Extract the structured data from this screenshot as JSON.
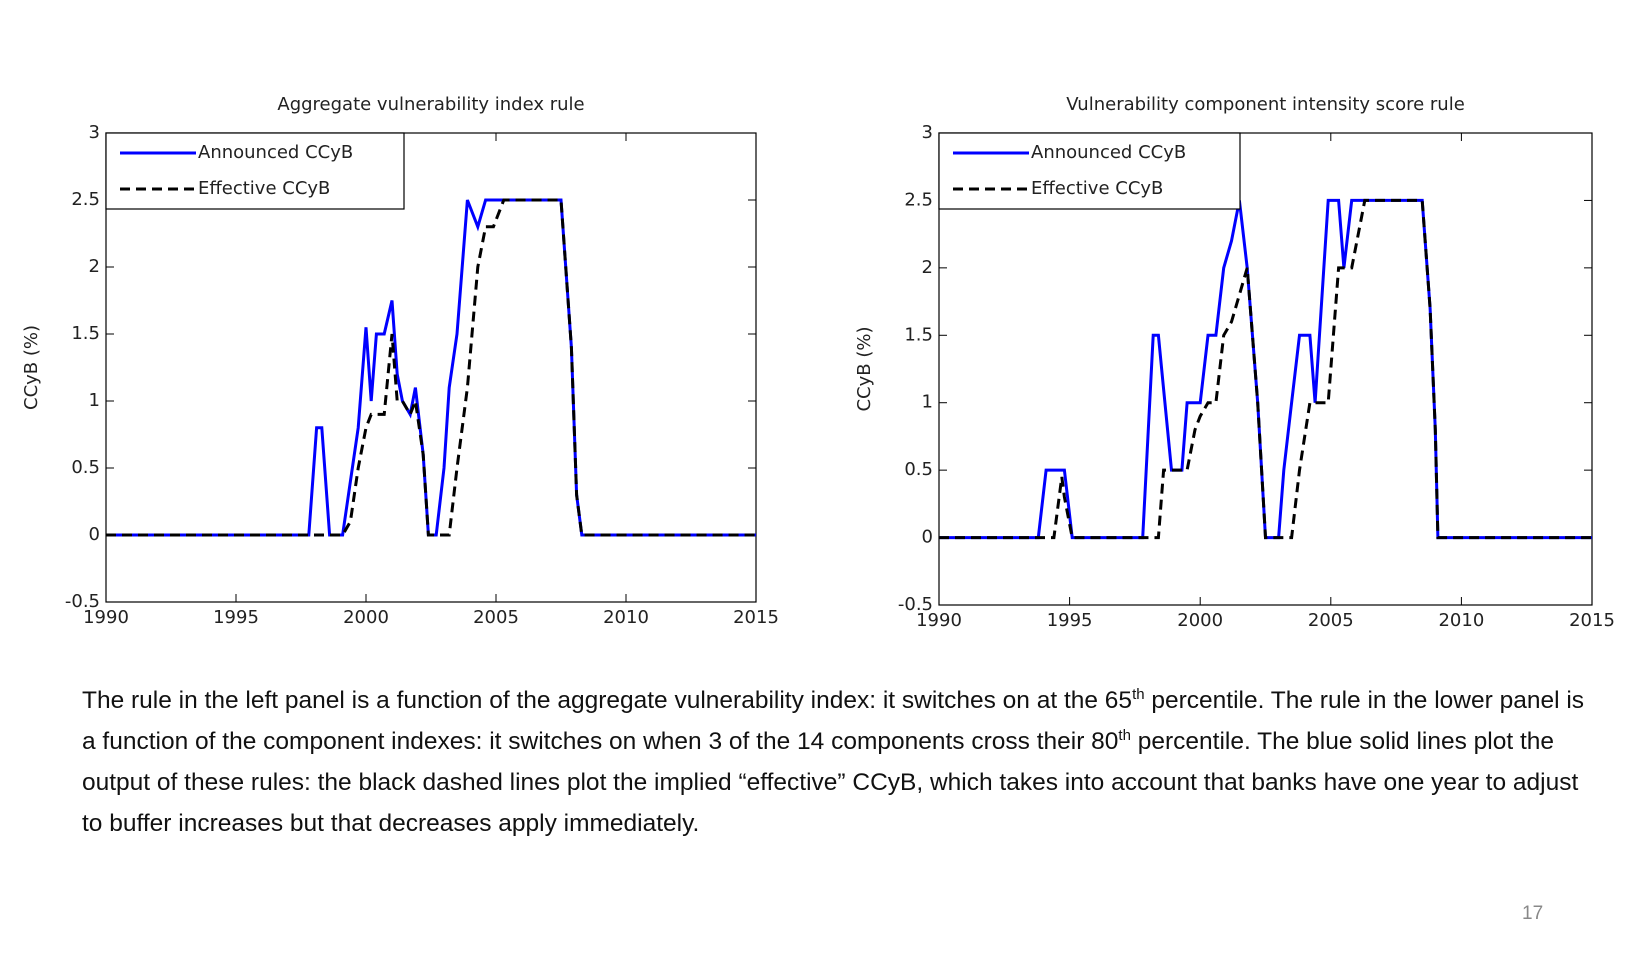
{
  "chart_data": [
    {
      "type": "line",
      "title": "Aggregate vulnerability index rule",
      "ylabel": "CCyB (%)",
      "x": [
        1990,
        1997.8,
        1998.1,
        1998.3,
        1998.6,
        1999.1,
        1999.4,
        1999.7,
        2000.0,
        2000.2,
        2000.4,
        2000.7,
        2001.0,
        2001.2,
        2001.4,
        2001.7,
        2001.9,
        2002.2,
        2002.4,
        2002.7,
        2003.0,
        2003.2,
        2003.5,
        2003.9,
        2004.3,
        2004.6,
        2004.9,
        2005.3,
        2007.5,
        2007.9,
        2008.1,
        2008.3,
        2015
      ],
      "series": [
        {
          "name": "Announced CCyB",
          "color": "#0000ff",
          "line_style": "solid",
          "values": [
            0,
            0,
            0.8,
            0.8,
            0,
            0,
            0.4,
            0.8,
            1.55,
            1.0,
            1.5,
            1.5,
            1.75,
            1.2,
            1.0,
            0.9,
            1.1,
            0.6,
            0,
            0,
            0.5,
            1.1,
            1.5,
            2.5,
            2.3,
            2.5,
            2.5,
            2.5,
            2.5,
            1.4,
            0.3,
            0,
            0
          ]
        },
        {
          "name": "Effective CCyB",
          "color": "#000000",
          "line_style": "dashed",
          "values": [
            0,
            0,
            0,
            0,
            0,
            0,
            0.1,
            0.5,
            0.8,
            0.9,
            0.9,
            0.9,
            1.5,
            1.0,
            1.0,
            0.9,
            1.0,
            0.6,
            0,
            0,
            0,
            0,
            0.5,
            1.1,
            2.0,
            2.3,
            2.3,
            2.5,
            2.5,
            1.4,
            0.3,
            0,
            0
          ]
        }
      ],
      "xlim": [
        1990,
        2015
      ],
      "xticks": [
        1990,
        1995,
        2000,
        2005,
        2010,
        2015
      ],
      "ylim": [
        -0.5,
        3
      ],
      "yticks": [
        -0.5,
        0,
        0.5,
        1,
        1.5,
        2,
        2.5,
        3
      ],
      "grid": false,
      "legend": "upper left"
    },
    {
      "type": "line",
      "title": "Vulnerability component intensity score rule",
      "ylabel": "CCyB (%)",
      "x": [
        1990,
        1993.8,
        1994.1,
        1994.4,
        1994.7,
        1994.8,
        1995.1,
        1997.8,
        1998.2,
        1998.4,
        1998.6,
        1998.9,
        1999.3,
        1999.5,
        1999.8,
        2000.0,
        2000.3,
        2000.6,
        2000.9,
        2001.2,
        2001.5,
        2001.8,
        2002.2,
        2002.5,
        2003.0,
        2003.2,
        2003.5,
        2003.8,
        2004.2,
        2004.4,
        2004.9,
        2005.3,
        2005.5,
        2005.8,
        2006.3,
        2008.5,
        2008.8,
        2009.0,
        2009.1,
        2015
      ],
      "series": [
        {
          "name": "Announced CCyB",
          "color": "#0000ff",
          "line_style": "solid",
          "values": [
            0,
            0,
            0.5,
            0.5,
            0.5,
            0.5,
            0,
            0,
            1.5,
            1.5,
            1.1,
            0.5,
            0.5,
            1.0,
            1.0,
            1.0,
            1.5,
            1.5,
            2.0,
            2.2,
            2.5,
            2.0,
            1.0,
            0,
            0,
            0.5,
            1.0,
            1.5,
            1.5,
            1.0,
            2.5,
            2.5,
            2.0,
            2.5,
            2.5,
            2.5,
            1.7,
            0.8,
            0,
            0
          ]
        },
        {
          "name": "Effective CCyB",
          "color": "#000000",
          "line_style": "dashed",
          "values": [
            0,
            0,
            0,
            0,
            0.45,
            0.3,
            0,
            0,
            0,
            0,
            0.5,
            0.5,
            0.5,
            0.5,
            0.8,
            0.9,
            1.0,
            1.0,
            1.5,
            1.6,
            1.8,
            2.0,
            1.0,
            0,
            0,
            0,
            0,
            0.5,
            1.0,
            1.0,
            1.0,
            2.0,
            2.0,
            2.0,
            2.5,
            2.5,
            1.7,
            0.8,
            0,
            0
          ]
        }
      ],
      "xlim": [
        1990,
        2015
      ],
      "xticks": [
        1990,
        1995,
        2000,
        2005,
        2010,
        2015
      ],
      "ylim": [
        -0.5,
        3
      ],
      "yticks": [
        -0.5,
        0,
        0.5,
        1,
        1.5,
        2,
        2.5,
        3
      ],
      "grid": false,
      "legend": "upper left"
    }
  ],
  "caption": [
    {
      "text": "The rule in the left panel is a function of the aggregate vulnerability index: it switches on at the 65",
      "sup": "th"
    },
    {
      "text": " percentile.  The rule in the lower panel is a function of the component indexes: it switches on when 3 of the 14 components cross their 80",
      "sup": "th"
    },
    {
      "text": " percentile.  The blue solid lines plot the output of these rules: the black dashed lines plot the implied “effective” CCyB, which takes into account that banks have one year to adjust to buffer increases but that decreases apply immediately."
    }
  ],
  "page_number": "17"
}
